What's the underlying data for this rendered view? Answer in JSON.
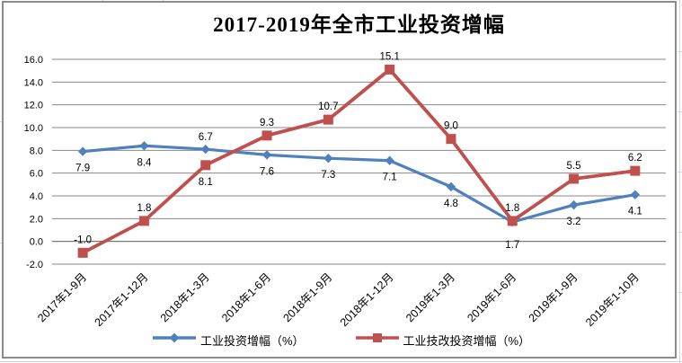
{
  "chart_data": {
    "type": "line",
    "title": "2017-2019年全市工业投资增幅",
    "categories": [
      "2017年1-9月",
      "2017年1-12月",
      "2018年1-3月",
      "2018年1-6月",
      "2018年1-9月",
      "2018年1-12月",
      "2019年1-3月",
      "2019年1-6月",
      "2019年1-9月",
      "2019年1-10月"
    ],
    "series": [
      {
        "name": "工业投资增幅（%）",
        "marker": "diamond",
        "color": "#4F81BD",
        "values": [
          7.9,
          8.4,
          8.1,
          7.6,
          7.3,
          7.1,
          4.8,
          1.7,
          3.2,
          4.1
        ]
      },
      {
        "name": "工业技改投资增幅（%）",
        "marker": "square",
        "color": "#C0504D",
        "values": [
          -1.0,
          1.8,
          6.7,
          9.3,
          10.7,
          15.1,
          9.0,
          1.8,
          5.5,
          6.2
        ]
      }
    ],
    "y_axis": {
      "min": -2.0,
      "max": 16.0,
      "step": 2.0,
      "decimals": 1
    },
    "x_axis": {
      "label_rotation": -45
    },
    "grid": true,
    "data_labels": true,
    "legend_position": "bottom"
  },
  "colors": {
    "gridline": "#8a8a8a",
    "zero_axis": "#6f6f6f",
    "chart_border": "#8c8c8c",
    "sheet_gridline": "#ccd6e6",
    "text": "#000000"
  }
}
